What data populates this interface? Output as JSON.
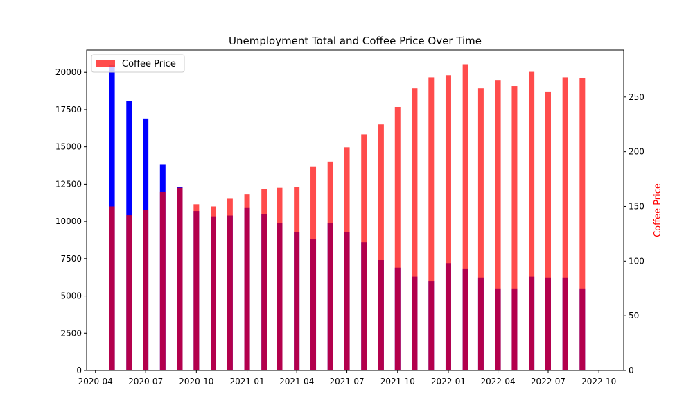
{
  "chart_data": {
    "type": "bar",
    "title": "Unemployment Total and Coffee Price Over Time",
    "xlabel": "",
    "ylabel_left": "",
    "ylabel_right": "Coffee Price",
    "colors": {
      "unemployment": "#0000ff",
      "coffee": "#ff0000",
      "coffee_alpha": 0.7,
      "right_label": "#ff0000"
    },
    "x_dates": [
      "2020-05",
      "2020-06",
      "2020-07",
      "2020-08",
      "2020-09",
      "2020-10",
      "2020-11",
      "2020-12",
      "2021-01",
      "2021-02",
      "2021-03",
      "2021-04",
      "2021-05",
      "2021-06",
      "2021-07",
      "2021-08",
      "2021-09",
      "2021-10",
      "2021-11",
      "2021-12",
      "2022-01",
      "2022-02",
      "2022-03",
      "2022-04",
      "2022-05",
      "2022-06",
      "2022-07",
      "2022-08",
      "2022-09"
    ],
    "x_tick_labels": [
      "2020-04",
      "2020-07",
      "2020-10",
      "2021-01",
      "2021-04",
      "2021-07",
      "2021-10",
      "2022-01",
      "2022-04",
      "2022-07",
      "2022-10"
    ],
    "series": [
      {
        "axis": "left",
        "values": [
          20500,
          18100,
          16900,
          13800,
          12300,
          10700,
          10300,
          10400,
          10900,
          10500,
          9900,
          9300,
          8800,
          9900,
          9300,
          8600,
          7400,
          6900,
          6300,
          6000,
          7200,
          6800,
          6200,
          5500,
          5500,
          6300,
          6200,
          6200,
          5500
        ]
      },
      {
        "name": "Coffee Price",
        "axis": "right",
        "values": [
          150,
          142,
          147,
          163,
          167,
          152,
          150,
          157,
          161,
          166,
          167,
          168,
          186,
          191,
          204,
          216,
          225,
          241,
          258,
          268,
          270,
          280,
          258,
          265,
          260,
          273,
          255,
          268,
          267
        ]
      }
    ],
    "ylim_left": [
      0,
      21500
    ],
    "yticks_left": [
      "0",
      "2500",
      "5000",
      "7500",
      "10000",
      "12500",
      "15000",
      "17500",
      "20000"
    ],
    "ylim_right": [
      0,
      293
    ],
    "yticks_right": [
      "0",
      "50",
      "100",
      "150",
      "200",
      "250"
    ],
    "legend": {
      "position": "top-left",
      "label": "Coffee Price"
    },
    "grid": false
  }
}
